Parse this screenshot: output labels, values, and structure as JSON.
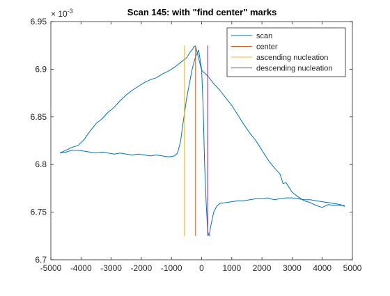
{
  "chart_data": {
    "type": "line",
    "title": "Scan 145: with \"find center\" marks",
    "xlim": [
      -5000,
      5000
    ],
    "ylim": [
      6.7,
      6.95
    ],
    "y_exponent_label": "× 10^-3",
    "x_ticks": [
      -5000,
      -4000,
      -3000,
      -2000,
      -1000,
      0,
      1000,
      2000,
      3000,
      4000,
      5000
    ],
    "x_tick_labels": [
      "-5000",
      "-4000",
      "-3000",
      "-2000",
      "-1000",
      "0",
      "1000",
      "2000",
      "3000",
      "4000",
      "5000"
    ],
    "y_ticks": [
      6.7,
      6.75,
      6.8,
      6.85,
      6.9,
      6.95
    ],
    "y_tick_labels": [
      "6.7",
      "6.75",
      "6.8",
      "6.85",
      "6.9",
      "6.95"
    ],
    "legend_position": "top-right",
    "grid": false,
    "series": [
      {
        "name": "scan",
        "color": "#0072BD",
        "segments": [
          {
            "x": [
              -4700,
              -4500,
              -4300,
              -4100,
              -3900,
              -3700,
              -3500,
              -3300,
              -3100,
              -2900,
              -2700,
              -2500,
              -2300,
              -2100,
              -1900,
              -1700,
              -1500,
              -1300,
              -1100,
              -900,
              -700,
              -500,
              -400,
              -300,
              -250,
              -200
            ],
            "y": [
              6.812,
              6.815,
              6.818,
              6.82,
              6.826,
              6.835,
              6.843,
              6.848,
              6.855,
              6.86,
              6.867,
              6.873,
              6.878,
              6.882,
              6.886,
              6.889,
              6.891,
              6.895,
              6.898,
              6.902,
              6.907,
              6.912,
              6.917,
              6.921,
              6.924,
              6.924
            ]
          },
          {
            "x": [
              -200,
              0,
              200,
              400,
              600,
              800,
              1000,
              1200,
              1400,
              1600,
              1800,
              2000,
              2200,
              2400,
              2600,
              2700,
              2800,
              3000,
              3200,
              3400,
              3600,
              3800,
              4000,
              4200,
              4400,
              4600,
              4750
            ],
            "y": [
              6.924,
              6.899,
              6.893,
              6.885,
              6.878,
              6.87,
              6.862,
              6.852,
              6.842,
              6.833,
              6.825,
              6.815,
              6.805,
              6.797,
              6.79,
              6.78,
              6.781,
              6.771,
              6.766,
              6.762,
              6.76,
              6.757,
              6.755,
              6.758,
              6.757,
              6.757,
              6.757
            ]
          },
          {
            "x": [
              -4700,
              -4500,
              -4300,
              -4100,
              -3900,
              -3700,
              -3500,
              -3300,
              -3100,
              -2900,
              -2700,
              -2500,
              -2300,
              -2100,
              -1900,
              -1700,
              -1500,
              -1300,
              -1100,
              -900,
              -800,
              -700,
              -600,
              -500,
              -400,
              -300,
              -200,
              -100,
              0,
              50,
              100,
              150,
              200,
              250
            ],
            "y": [
              6.812,
              6.813,
              6.815,
              6.815,
              6.814,
              6.813,
              6.812,
              6.813,
              6.812,
              6.811,
              6.812,
              6.811,
              6.81,
              6.811,
              6.81,
              6.809,
              6.81,
              6.809,
              6.808,
              6.809,
              6.812,
              6.824,
              6.847,
              6.869,
              6.886,
              6.902,
              6.913,
              6.92,
              6.9,
              6.86,
              6.8,
              6.76,
              6.73,
              6.725
            ]
          },
          {
            "x": [
              250,
              300,
              400,
              500,
              600,
              800,
              1000,
              1200,
              1400,
              1600,
              1800,
              2000,
              2200,
              2400,
              2600,
              2800,
              3000,
              3200,
              3400,
              3600,
              3800,
              4000,
              4200,
              4400,
              4600,
              4750
            ],
            "y": [
              6.725,
              6.735,
              6.75,
              6.756,
              6.759,
              6.76,
              6.761,
              6.762,
              6.762,
              6.763,
              6.764,
              6.764,
              6.765,
              6.763,
              6.764,
              6.765,
              6.765,
              6.764,
              6.763,
              6.763,
              6.762,
              6.761,
              6.76,
              6.759,
              6.758,
              6.756
            ]
          }
        ]
      },
      {
        "name": "center",
        "color": "#D95319",
        "x": [
          -200,
          -200
        ],
        "y": [
          6.725,
          6.925
        ]
      },
      {
        "name": "ascending nucleation",
        "color": "#EDB120",
        "x": [
          -570,
          -570
        ],
        "y": [
          6.725,
          6.925
        ]
      },
      {
        "name": "descending nucleation",
        "color": "#7E2F8E",
        "x": [
          200,
          200
        ],
        "y": [
          6.725,
          6.925
        ]
      }
    ]
  }
}
